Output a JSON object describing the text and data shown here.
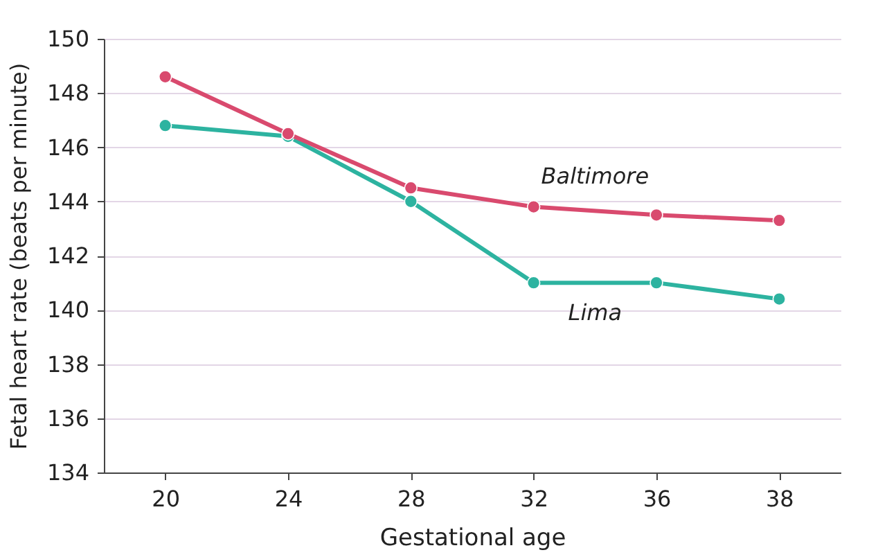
{
  "chart_data": {
    "type": "line",
    "xlabel": "Gestational age",
    "ylabel": "Fetal heart rate (beats per minute)",
    "categories": [
      "20",
      "24",
      "28",
      "32",
      "36",
      "38"
    ],
    "series": [
      {
        "name": "Baltimore",
        "color": "#d94a6e",
        "values": [
          148.6,
          146.5,
          144.5,
          143.8,
          143.5,
          143.3
        ]
      },
      {
        "name": "Lima",
        "color": "#2db3a0",
        "values": [
          146.8,
          146.4,
          144.0,
          141.0,
          141.0,
          140.4
        ]
      }
    ],
    "ylim": [
      134,
      150
    ],
    "yticks": [
      134,
      136,
      138,
      140,
      142,
      144,
      146,
      148,
      150
    ],
    "grid": "y",
    "marker": "circle",
    "line_style": "solid",
    "legend": false
  }
}
